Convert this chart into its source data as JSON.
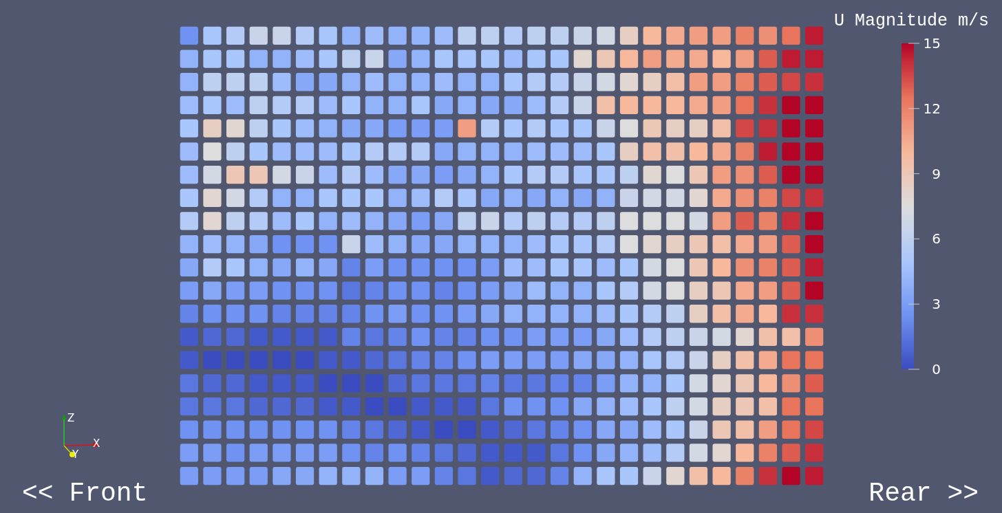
{
  "chart_data": {
    "type": "heatmap",
    "categories": [
      null,
      null,
      null,
      null,
      null,
      null,
      null,
      null,
      null,
      null,
      null,
      null,
      null,
      null,
      null,
      null,
      null,
      null,
      null,
      null,
      null,
      null,
      null,
      null,
      null,
      null,
      null,
      null
    ],
    "y_categories": [
      null,
      null,
      null,
      null,
      null,
      null,
      null,
      null,
      null,
      null,
      null,
      null,
      null,
      null,
      null,
      null,
      null,
      null,
      null,
      null
    ],
    "cells": [
      [
        2.5,
        5,
        5.5,
        6.5,
        6.5,
        5.5,
        5,
        4,
        4.5,
        4,
        4,
        4.5,
        6,
        6,
        5.5,
        6,
        6,
        6.5,
        7,
        8.5,
        10,
        10.5,
        11,
        11,
        12,
        11.5,
        12.5,
        14.5
      ],
      [
        4,
        5,
        5,
        4,
        4,
        4.5,
        5,
        6,
        6.5,
        3.5,
        4,
        5,
        5,
        5,
        4.5,
        5,
        5,
        8,
        9,
        10,
        11,
        10.5,
        10.5,
        10,
        11,
        13,
        14.5,
        14.5
      ],
      [
        4,
        6,
        6,
        6,
        4.5,
        3.5,
        3.5,
        4,
        4.5,
        4,
        4,
        4.5,
        4,
        4,
        5,
        5.5,
        5.5,
        6.5,
        7,
        8,
        8.5,
        9.5,
        11,
        11,
        12,
        13,
        13.5,
        14
      ],
      [
        4.5,
        5,
        4.5,
        6,
        5.5,
        5.5,
        4.5,
        5,
        4,
        4,
        5,
        3.5,
        4,
        3.5,
        3.5,
        4.5,
        5.5,
        6.5,
        9.5,
        10,
        10,
        10,
        10.5,
        11,
        12.5,
        14,
        15,
        15
      ],
      [
        5,
        8.5,
        8,
        6,
        5,
        4.5,
        4,
        3.5,
        3.5,
        3,
        3,
        3,
        11,
        5.5,
        5,
        5.5,
        5,
        5,
        6.5,
        7.5,
        9,
        8.5,
        8.5,
        9.5,
        13.5,
        14,
        15,
        15
      ],
      [
        4.5,
        7.5,
        6,
        5,
        4.5,
        4.5,
        4.5,
        5,
        5.5,
        5.5,
        5.5,
        3.5,
        4,
        4,
        4,
        4.5,
        4.5,
        4.5,
        5,
        8.5,
        9.5,
        9.5,
        10,
        10.5,
        12,
        14.5,
        15,
        15
      ],
      [
        4.5,
        7,
        9,
        9,
        7,
        6.5,
        4.5,
        5.5,
        4.5,
        3.5,
        3.5,
        3,
        3.5,
        4,
        5,
        5.5,
        5.5,
        5,
        5,
        6,
        8,
        7.5,
        9,
        11,
        11.5,
        13,
        15,
        15
      ],
      [
        5,
        8,
        7,
        5.5,
        4,
        4,
        5,
        5,
        5,
        4,
        4.5,
        5.5,
        5,
        3.5,
        4,
        3.5,
        4,
        3.5,
        4,
        6.5,
        7,
        7,
        8,
        10.5,
        11.5,
        12,
        13.5,
        14
      ],
      [
        5.5,
        8,
        6,
        5.5,
        4.5,
        5,
        4,
        4.5,
        4,
        3.5,
        3,
        3.5,
        6,
        6.5,
        5.5,
        6,
        5.5,
        5.5,
        6,
        7.5,
        7.5,
        7.5,
        7,
        11,
        13,
        12,
        14,
        15
      ],
      [
        4,
        4.5,
        4,
        3.5,
        2.5,
        2.5,
        2.5,
        6.5,
        4.5,
        4,
        3.5,
        3.5,
        4,
        4,
        4,
        4.5,
        5,
        5,
        5.5,
        7.5,
        8,
        8.5,
        9,
        9.5,
        10.5,
        11,
        13,
        15
      ],
      [
        3.5,
        5.5,
        5,
        4,
        3.5,
        4,
        3.5,
        2,
        3,
        2.5,
        2.5,
        2.5,
        2.5,
        3,
        4.5,
        4.5,
        5,
        5,
        4.5,
        5,
        7,
        7.5,
        9,
        10,
        11.5,
        12,
        13,
        14.5
      ],
      [
        3,
        3.5,
        3,
        3,
        2.5,
        2.5,
        2.5,
        1.5,
        2,
        2.5,
        2.5,
        2,
        2.5,
        3,
        3.5,
        4.5,
        4,
        4,
        5,
        5.5,
        7,
        7.5,
        8.5,
        9,
        10.5,
        11,
        13,
        15
      ],
      [
        2,
        2.5,
        2.5,
        2.5,
        2,
        2,
        2,
        2,
        2.5,
        3,
        2.5,
        2.5,
        3,
        3.5,
        4,
        4,
        4,
        4,
        4.5,
        5,
        5.5,
        6,
        8.5,
        9.5,
        10.5,
        10,
        14,
        14
      ],
      [
        0.5,
        1,
        1,
        0.5,
        0.5,
        0.5,
        0.5,
        2,
        1.5,
        2,
        2.5,
        2,
        2,
        2.5,
        2.5,
        3,
        3,
        3,
        3.5,
        4.5,
        5.5,
        6,
        6.5,
        7,
        8,
        9.5,
        9.5,
        11.5
      ],
      [
        0.5,
        0,
        0,
        0,
        0,
        0,
        0.5,
        0.5,
        1,
        1.5,
        2,
        2,
        2.5,
        3,
        3,
        3,
        3,
        3.5,
        3.5,
        4,
        5,
        5.5,
        6.5,
        8.5,
        9.5,
        10.5,
        12.5,
        12.5
      ],
      [
        1.5,
        1,
        1,
        0.5,
        0.5,
        0.5,
        0,
        0,
        0,
        1,
        1.5,
        1.5,
        1.5,
        2,
        1.5,
        1.5,
        2,
        2,
        3,
        4,
        4,
        5,
        7,
        8,
        9,
        10,
        11.5,
        13
      ],
      [
        1.5,
        1.5,
        1.5,
        1,
        1,
        1,
        0.5,
        0.5,
        0,
        0,
        0.5,
        0.5,
        0.5,
        1.5,
        2.5,
        2.5,
        2.5,
        3.5,
        4,
        4.5,
        5,
        6,
        7,
        8.5,
        9,
        9.5,
        12.5,
        12.5
      ],
      [
        2.5,
        2.5,
        2.5,
        2.5,
        2.5,
        2.5,
        2.5,
        2,
        1.5,
        1,
        0.5,
        0,
        0,
        0.5,
        1,
        1.5,
        2,
        2.5,
        3.5,
        3.5,
        4.5,
        5,
        6.5,
        9,
        9.5,
        11,
        12.5,
        13.5
      ],
      [
        3,
        3,
        2.5,
        3,
        3,
        3,
        3,
        2.5,
        2,
        2.5,
        2,
        1.5,
        1,
        0.5,
        0.5,
        0.5,
        1.5,
        2.5,
        3.5,
        4,
        4.5,
        5.5,
        7,
        8,
        10,
        12,
        13,
        14
      ],
      [
        3,
        3,
        3,
        3,
        3.5,
        3.5,
        4,
        4,
        4,
        3,
        3,
        2,
        1.5,
        0.5,
        1,
        1,
        2,
        4,
        5,
        5,
        6.5,
        8,
        9.5,
        10,
        12,
        14,
        15,
        14.5
      ]
    ],
    "clim": [
      0,
      15
    ],
    "cticks": [
      0,
      3,
      6,
      9,
      12,
      15
    ],
    "clabel": "U Magnitude m/s",
    "annotations": [
      "<< Front",
      "Rear >>",
      "Z",
      "X",
      "Y"
    ]
  }
}
